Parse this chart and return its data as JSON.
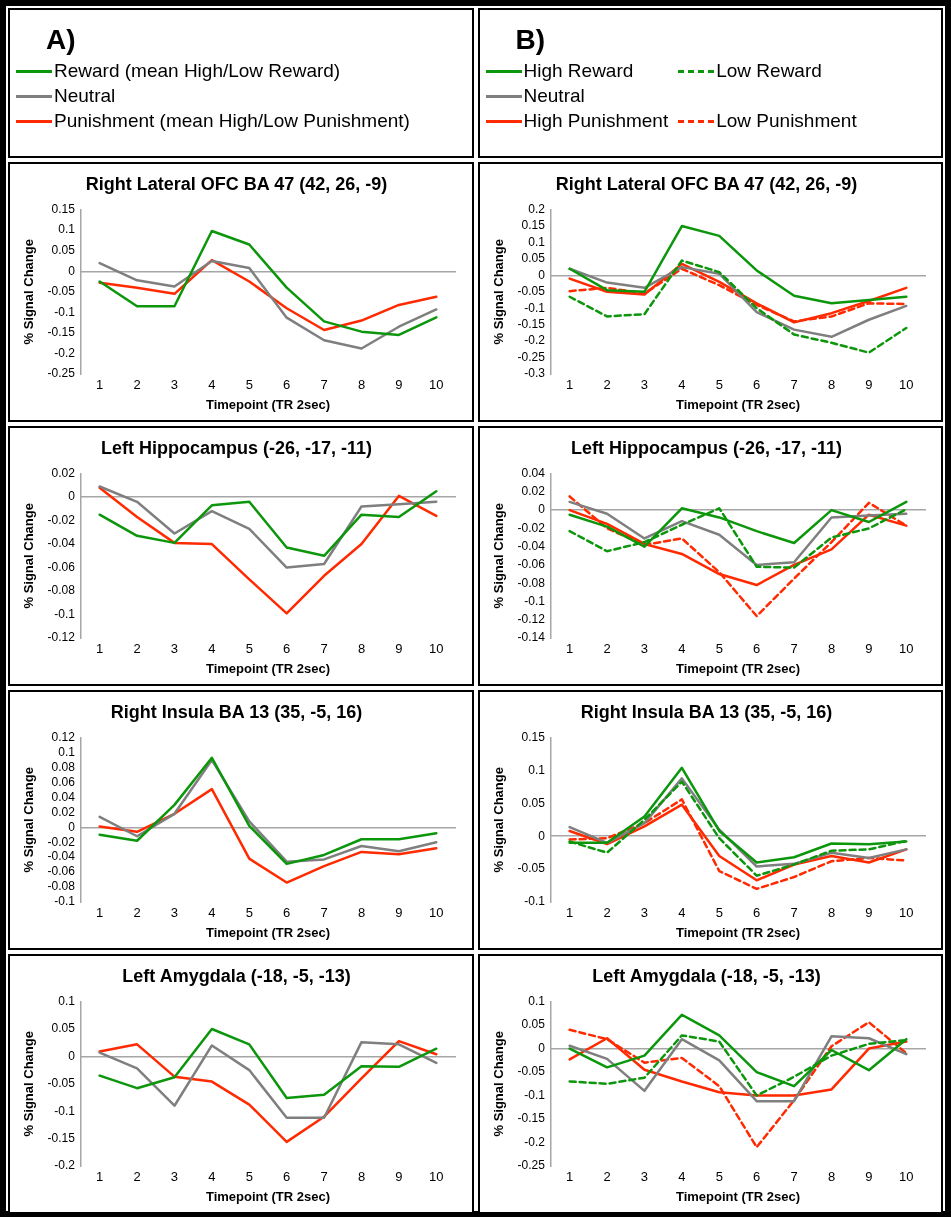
{
  "chart_data": [
    {
      "type": "line",
      "title": "Right Lateral OFC BA 47 (42, 26, -9)",
      "xlabel": "Timepoint (TR 2sec)",
      "ylabel": "% Signal Change",
      "annotations": [
        "A)"
      ],
      "legend": "top",
      "marker": "none",
      "categories": [
        "1",
        "2",
        "3",
        "4",
        "5",
        "6",
        "7",
        "8",
        "9",
        "10"
      ],
      "ylim": [
        -0.25,
        0.15
      ],
      "yticks": [
        -0.25,
        -0.2,
        -0.15,
        -0.1,
        -0.05,
        0,
        0.05,
        0.1,
        0.15
      ],
      "series": [
        {
          "name": "Reward (mean High/Low Reward)",
          "color": "#0c960c",
          "values": [
            -0.025,
            -0.085,
            -0.085,
            0.098,
            0.065,
            -0.04,
            -0.122,
            -0.147,
            -0.155,
            -0.112
          ]
        },
        {
          "name": "Neutral",
          "color": "#7f7f7f",
          "values": [
            0.02,
            -0.022,
            -0.037,
            0.025,
            0.008,
            -0.113,
            -0.168,
            -0.188,
            -0.135,
            -0.093
          ]
        },
        {
          "name": "Punishment (mean High/Low Punishment)",
          "color": "#ff2a00",
          "values": [
            -0.028,
            -0.04,
            -0.055,
            0.027,
            -0.025,
            -0.09,
            -0.143,
            -0.12,
            -0.082,
            -0.062
          ]
        }
      ]
    },
    {
      "type": "line",
      "title": "Right Lateral OFC BA 47 (42, 26, -9)",
      "xlabel": "Timepoint (TR 2sec)",
      "ylabel": "% Signal Change",
      "annotations": [
        "B)"
      ],
      "legend": "top",
      "marker": "none",
      "categories": [
        "1",
        "2",
        "3",
        "4",
        "5",
        "6",
        "7",
        "8",
        "9",
        "10"
      ],
      "ylim": [
        -0.3,
        0.2
      ],
      "yticks": [
        -0.3,
        -0.25,
        -0.2,
        -0.15,
        -0.1,
        -0.05,
        0,
        0.05,
        0.1,
        0.15,
        0.2
      ],
      "series": [
        {
          "name": "High Reward",
          "color": "#0c960c",
          "line_style": "solid",
          "values": [
            0.02,
            -0.045,
            -0.05,
            0.15,
            0.12,
            0.015,
            -0.062,
            -0.085,
            -0.075,
            -0.065
          ]
        },
        {
          "name": "Low Reward",
          "color": "#0c960c",
          "line_style": "dashed",
          "values": [
            -0.065,
            -0.125,
            -0.118,
            0.045,
            0.01,
            -0.1,
            -0.18,
            -0.205,
            -0.235,
            -0.16
          ]
        },
        {
          "name": "Neutral",
          "color": "#7f7f7f",
          "line_style": "solid",
          "values": [
            0.02,
            -0.022,
            -0.038,
            0.025,
            0.005,
            -0.112,
            -0.165,
            -0.187,
            -0.135,
            -0.093
          ]
        },
        {
          "name": "High Punishment",
          "color": "#ff2a00",
          "line_style": "solid",
          "values": [
            -0.01,
            -0.05,
            -0.058,
            0.035,
            -0.02,
            -0.085,
            -0.143,
            -0.115,
            -0.078,
            -0.038
          ]
        },
        {
          "name": "Low Punishment",
          "color": "#ff2a00",
          "line_style": "dashed",
          "values": [
            -0.048,
            -0.038,
            -0.055,
            0.02,
            -0.03,
            -0.09,
            -0.14,
            -0.125,
            -0.085,
            -0.087
          ]
        }
      ]
    },
    {
      "type": "line",
      "title": "Left Hippocampus (-26, -17, -11)",
      "xlabel": "Timepoint (TR 2sec)",
      "ylabel": "% Signal Change",
      "marker": "none",
      "categories": [
        "1",
        "2",
        "3",
        "4",
        "5",
        "6",
        "7",
        "8",
        "9",
        "10"
      ],
      "ylim": [
        -0.12,
        0.02
      ],
      "yticks": [
        -0.12,
        -0.1,
        -0.08,
        -0.06,
        -0.04,
        -0.02,
        0,
        0.02
      ],
      "series": [
        {
          "color": "#0c960c",
          "values": [
            -0.015,
            -0.033,
            -0.039,
            -0.007,
            -0.004,
            -0.043,
            -0.05,
            -0.015,
            -0.017,
            0.005
          ]
        },
        {
          "color": "#7f7f7f",
          "values": [
            0.009,
            -0.004,
            -0.031,
            -0.012,
            -0.027,
            -0.06,
            -0.057,
            -0.008,
            -0.006,
            -0.004
          ]
        },
        {
          "color": "#ff2a00",
          "values": [
            0.008,
            -0.017,
            -0.039,
            -0.04,
            -0.07,
            -0.099,
            -0.067,
            -0.04,
            0.001,
            -0.016
          ]
        }
      ]
    },
    {
      "type": "line",
      "title": "Left Hippocampus (-26, -17, -11)",
      "xlabel": "Timepoint (TR 2sec)",
      "ylabel": "% Signal Change",
      "marker": "none",
      "categories": [
        "1",
        "2",
        "3",
        "4",
        "5",
        "6",
        "7",
        "8",
        "9",
        "10"
      ],
      "ylim": [
        -0.14,
        0.04
      ],
      "yticks": [
        -0.14,
        -0.12,
        -0.1,
        -0.08,
        -0.06,
        -0.04,
        -0.02,
        0,
        0.02,
        0.04
      ],
      "series": [
        {
          "color": "#0c960c",
          "line_style": "solid",
          "values": [
            -0.005,
            -0.018,
            -0.04,
            0.002,
            -0.008,
            -0.023,
            -0.036,
            0,
            -0.013,
            0.009
          ]
        },
        {
          "color": "#0c960c",
          "line_style": "dashed",
          "values": [
            -0.023,
            -0.045,
            -0.035,
            -0.016,
            0.002,
            -0.062,
            -0.063,
            -0.03,
            -0.02,
            0.001
          ]
        },
        {
          "color": "#7f7f7f",
          "line_style": "solid",
          "values": [
            0.009,
            -0.004,
            -0.031,
            -0.012,
            -0.027,
            -0.06,
            -0.057,
            -0.008,
            -0.006,
            -0.004
          ]
        },
        {
          "color": "#ff2a00",
          "line_style": "solid",
          "values": [
            0,
            -0.015,
            -0.037,
            -0.048,
            -0.07,
            -0.082,
            -0.06,
            -0.043,
            -0.005,
            -0.017
          ]
        },
        {
          "color": "#ff2a00",
          "line_style": "dashed",
          "values": [
            0.015,
            -0.02,
            -0.038,
            -0.031,
            -0.068,
            -0.116,
            -0.075,
            -0.035,
            0.008,
            -0.017
          ]
        }
      ]
    },
    {
      "type": "line",
      "title": "Right Insula BA 13 (35, -5, 16)",
      "xlabel": "Timepoint (TR 2sec)",
      "ylabel": "% Signal Change",
      "marker": "none",
      "categories": [
        "1",
        "2",
        "3",
        "4",
        "5",
        "6",
        "7",
        "8",
        "9",
        "10"
      ],
      "ylim": [
        -0.1,
        0.12
      ],
      "yticks": [
        -0.1,
        -0.08,
        -0.06,
        -0.04,
        -0.02,
        0,
        0.02,
        0.04,
        0.06,
        0.08,
        0.1,
        0.12
      ],
      "series": [
        {
          "color": "#0c960c",
          "values": [
            -0.01,
            -0.018,
            0.03,
            0.093,
            0.002,
            -0.049,
            -0.037,
            -0.016,
            -0.016,
            -0.008
          ]
        },
        {
          "color": "#7f7f7f",
          "values": [
            0.014,
            -0.012,
            0.018,
            0.09,
            0.008,
            -0.046,
            -0.043,
            -0.025,
            -0.032,
            -0.02
          ]
        },
        {
          "color": "#ff2a00",
          "values": [
            0.001,
            -0.006,
            0.018,
            0.051,
            -0.042,
            -0.074,
            -0.052,
            -0.033,
            -0.036,
            -0.028
          ]
        }
      ]
    },
    {
      "type": "line",
      "title": "Right Insula BA 13 (35, -5, 16)",
      "xlabel": "Timepoint (TR 2sec)",
      "ylabel": "% Signal Change",
      "marker": "none",
      "categories": [
        "1",
        "2",
        "3",
        "4",
        "5",
        "6",
        "7",
        "8",
        "9",
        "10"
      ],
      "ylim": [
        -0.1,
        0.15
      ],
      "yticks": [
        -0.1,
        -0.05,
        0,
        0.05,
        0.1,
        0.15
      ],
      "series": [
        {
          "color": "#0c960c",
          "line_style": "solid",
          "values": [
            -0.01,
            -0.01,
            0.03,
            0.104,
            0.008,
            -0.04,
            -0.032,
            -0.011,
            -0.012,
            -0.008
          ]
        },
        {
          "color": "#0c960c",
          "line_style": "dashed",
          "values": [
            -0.008,
            -0.025,
            0.025,
            0.083,
            -0.003,
            -0.06,
            -0.043,
            -0.022,
            -0.02,
            -0.007
          ]
        },
        {
          "color": "#7f7f7f",
          "line_style": "solid",
          "values": [
            0.014,
            -0.01,
            0.02,
            0.088,
            0.01,
            -0.046,
            -0.042,
            -0.025,
            -0.033,
            -0.02
          ]
        },
        {
          "color": "#ff2a00",
          "line_style": "solid",
          "values": [
            0.008,
            -0.012,
            0.015,
            0.048,
            -0.03,
            -0.067,
            -0.043,
            -0.03,
            -0.04,
            -0.02
          ]
        },
        {
          "color": "#ff2a00",
          "line_style": "dashed",
          "values": [
            -0.005,
            -0.003,
            0.02,
            0.056,
            -0.053,
            -0.08,
            -0.062,
            -0.038,
            -0.033,
            -0.037
          ]
        }
      ]
    },
    {
      "type": "line",
      "title": "Left Amygdala (-18, -5, -13)",
      "xlabel": "Timepoint (TR 2sec)",
      "ylabel": "% Signal Change",
      "marker": "none",
      "categories": [
        "1",
        "2",
        "3",
        "4",
        "5",
        "6",
        "7",
        "8",
        "9",
        "10"
      ],
      "ylim": [
        -0.2,
        0.1
      ],
      "yticks": [
        -0.2,
        -0.15,
        -0.1,
        -0.05,
        0,
        0.05,
        0.1
      ],
      "series": [
        {
          "color": "#0c960c",
          "values": [
            -0.035,
            -0.058,
            -0.038,
            0.05,
            0.022,
            -0.076,
            -0.07,
            -0.018,
            -0.019,
            0.014
          ]
        },
        {
          "color": "#7f7f7f",
          "values": [
            0.007,
            -0.022,
            -0.09,
            0.02,
            -0.025,
            -0.112,
            -0.112,
            0.026,
            0.022,
            -0.012
          ]
        },
        {
          "color": "#ff2a00",
          "values": [
            0.009,
            0.022,
            -0.037,
            -0.046,
            -0.088,
            -0.156,
            -0.11,
            -0.04,
            0.028,
            0.004
          ]
        }
      ]
    },
    {
      "type": "line",
      "title": "Left Amygdala (-18, -5, -13)",
      "xlabel": "Timepoint (TR 2sec)",
      "ylabel": "% Signal Change",
      "marker": "none",
      "categories": [
        "1",
        "2",
        "3",
        "4",
        "5",
        "6",
        "7",
        "8",
        "9",
        "10"
      ],
      "ylim": [
        -0.25,
        0.1
      ],
      "yticks": [
        -0.25,
        -0.2,
        -0.15,
        -0.1,
        -0.05,
        0,
        0.05,
        0.1
      ],
      "series": [
        {
          "color": "#0c960c",
          "line_style": "solid",
          "values": [
            0,
            -0.04,
            -0.015,
            0.072,
            0.028,
            -0.05,
            -0.08,
            -0.003,
            -0.046,
            0.02
          ]
        },
        {
          "color": "#0c960c",
          "line_style": "dashed",
          "values": [
            -0.07,
            -0.075,
            -0.062,
            0.028,
            0.015,
            -0.1,
            -0.06,
            -0.015,
            0.01,
            0.018
          ]
        },
        {
          "color": "#7f7f7f",
          "line_style": "solid",
          "values": [
            0.006,
            -0.022,
            -0.09,
            0.02,
            -0.025,
            -0.112,
            -0.112,
            0.026,
            0.022,
            -0.012
          ]
        },
        {
          "color": "#ff2a00",
          "line_style": "solid",
          "values": [
            -0.023,
            0.022,
            -0.045,
            -0.07,
            -0.093,
            -0.1,
            -0.1,
            -0.087,
            0,
            0.015
          ]
        },
        {
          "color": "#ff2a00",
          "line_style": "dashed",
          "values": [
            0.04,
            0.02,
            -0.03,
            -0.02,
            -0.08,
            -0.21,
            -0.11,
            0.005,
            0.056,
            -0.01
          ]
        }
      ]
    }
  ]
}
